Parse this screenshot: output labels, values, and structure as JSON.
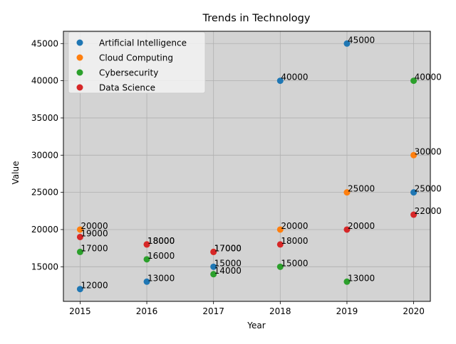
{
  "chart_data": {
    "type": "scatter",
    "title": "Trends in Technology",
    "xlabel": "Year",
    "ylabel": "Value",
    "xlim": [
      2014.75,
      2020.25
    ],
    "ylim": [
      10350,
      46650
    ],
    "xticks": [
      2015,
      2016,
      2017,
      2018,
      2019,
      2020
    ],
    "yticks": [
      15000,
      20000,
      25000,
      30000,
      35000,
      40000,
      45000
    ],
    "grid": true,
    "legend_position": "upper-left",
    "plot_background": "#d3d3d3",
    "series": [
      {
        "name": "Artificial Intelligence",
        "color": "#1f77b4",
        "points": [
          {
            "x": 2015,
            "y": 12000,
            "label": "12000"
          },
          {
            "x": 2016,
            "y": 13000,
            "label": "13000"
          },
          {
            "x": 2017,
            "y": 15000,
            "label": "15000"
          },
          {
            "x": 2018,
            "y": 40000,
            "label": "40000"
          },
          {
            "x": 2019,
            "y": 45000,
            "label": "45000"
          },
          {
            "x": 2020,
            "y": 25000,
            "label": "25000"
          }
        ]
      },
      {
        "name": "Cloud Computing",
        "color": "#ff7f0e",
        "points": [
          {
            "x": 2015,
            "y": 20000,
            "label": "20000"
          },
          {
            "x": 2016,
            "y": 18000,
            "label": "18000"
          },
          {
            "x": 2017,
            "y": 17000,
            "label": "17000"
          },
          {
            "x": 2018,
            "y": 20000,
            "label": "20000"
          },
          {
            "x": 2019,
            "y": 25000,
            "label": "25000"
          },
          {
            "x": 2020,
            "y": 30000,
            "label": "30000"
          }
        ]
      },
      {
        "name": "Cybersecurity",
        "color": "#2ca02c",
        "points": [
          {
            "x": 2015,
            "y": 17000,
            "label": "17000"
          },
          {
            "x": 2016,
            "y": 16000,
            "label": "16000"
          },
          {
            "x": 2017,
            "y": 14000,
            "label": "14000"
          },
          {
            "x": 2018,
            "y": 15000,
            "label": "15000"
          },
          {
            "x": 2019,
            "y": 13000,
            "label": "13000"
          },
          {
            "x": 2020,
            "y": 40000,
            "label": "40000"
          }
        ]
      },
      {
        "name": "Data Science",
        "color": "#d62728",
        "points": [
          {
            "x": 2015,
            "y": 19000,
            "label": "19000"
          },
          {
            "x": 2016,
            "y": 18000,
            "label": "18000"
          },
          {
            "x": 2017,
            "y": 17000,
            "label": "17000"
          },
          {
            "x": 2018,
            "y": 18000,
            "label": "18000"
          },
          {
            "x": 2019,
            "y": 20000,
            "label": "20000"
          },
          {
            "x": 2020,
            "y": 22000,
            "label": "22000"
          }
        ]
      }
    ]
  }
}
